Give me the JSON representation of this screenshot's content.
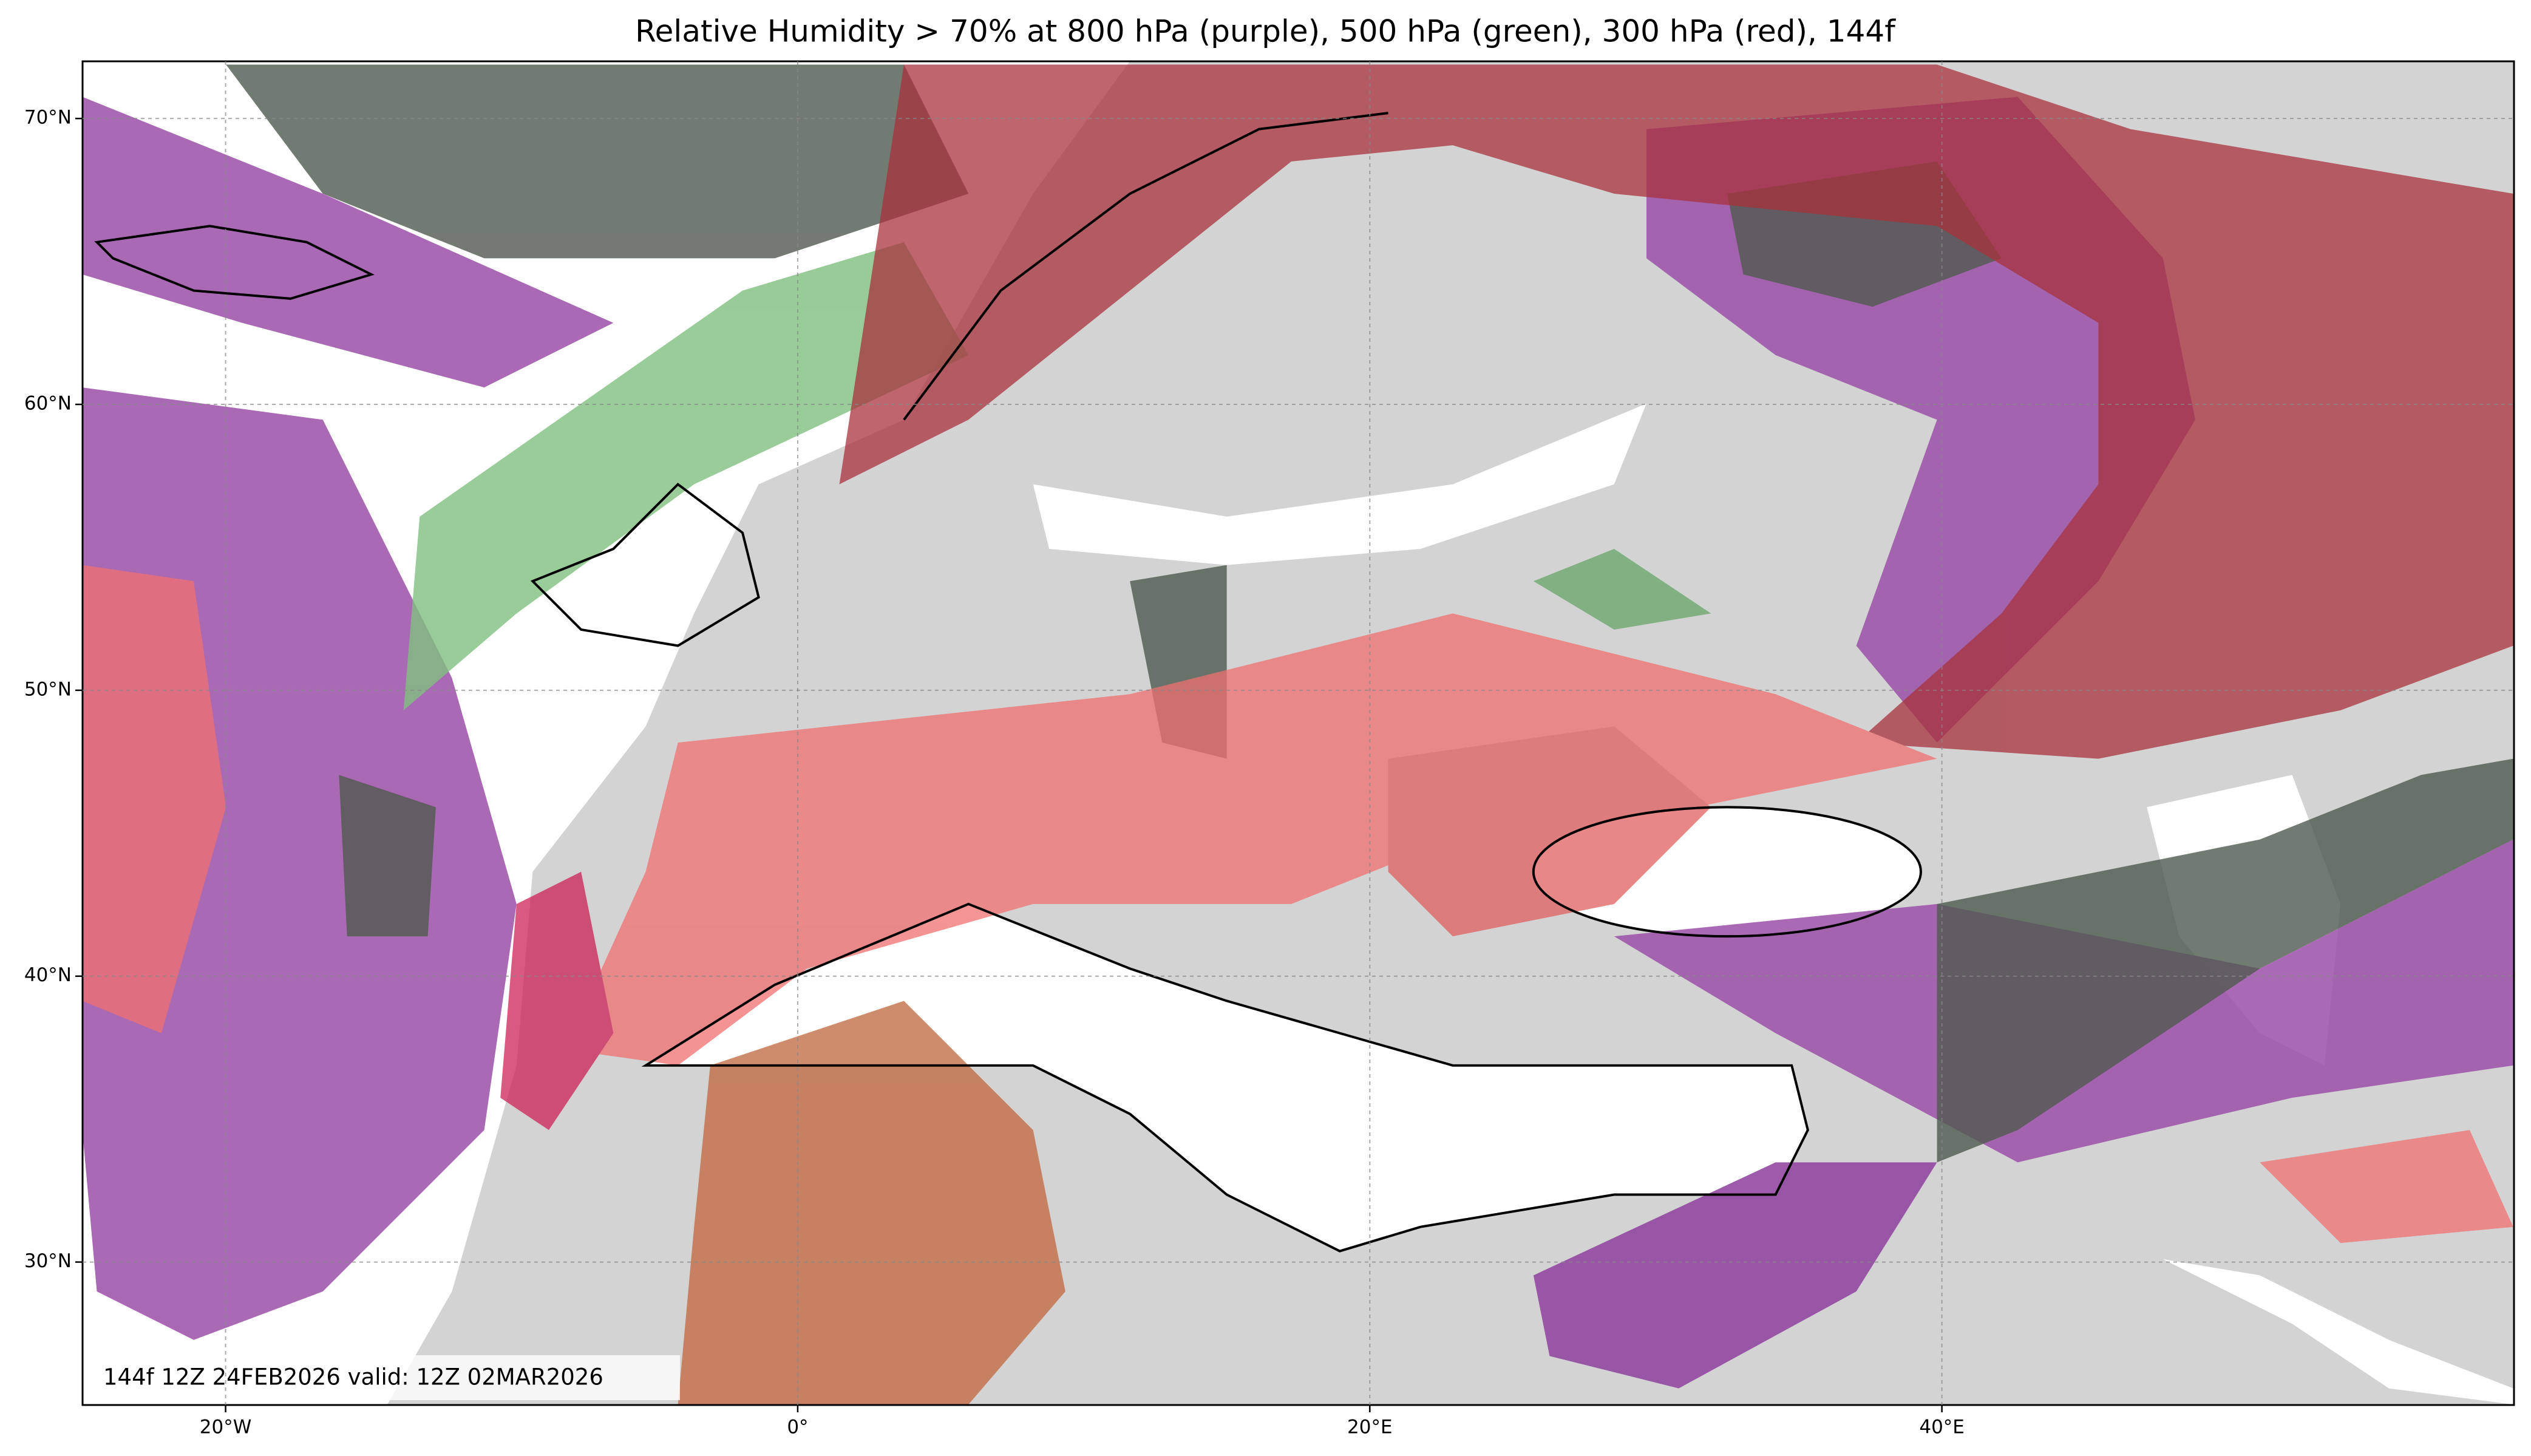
{
  "chart_data": {
    "type": "map",
    "title": "Relative Humidity > 70% at 800 hPa (purple), 500 hPa (green), 300 hPa (red), 144f",
    "annotation": "144f 12Z 24FEB2026 valid: 12Z 02MAR2026",
    "xlim": [
      -25,
      60
    ],
    "ylim": [
      25,
      72
    ],
    "xticks": [
      {
        "value": -20,
        "label": "20°W"
      },
      {
        "value": 0,
        "label": "0°"
      },
      {
        "value": 20,
        "label": "20°E"
      },
      {
        "value": 40,
        "label": "40°E"
      }
    ],
    "yticks": [
      {
        "value": 30,
        "label": "30°N"
      },
      {
        "value": 40,
        "label": "40°N"
      },
      {
        "value": 50,
        "label": "50°N"
      },
      {
        "value": 60,
        "label": "60°N"
      },
      {
        "value": 70,
        "label": "70°N"
      }
    ],
    "grid": true
  }
}
